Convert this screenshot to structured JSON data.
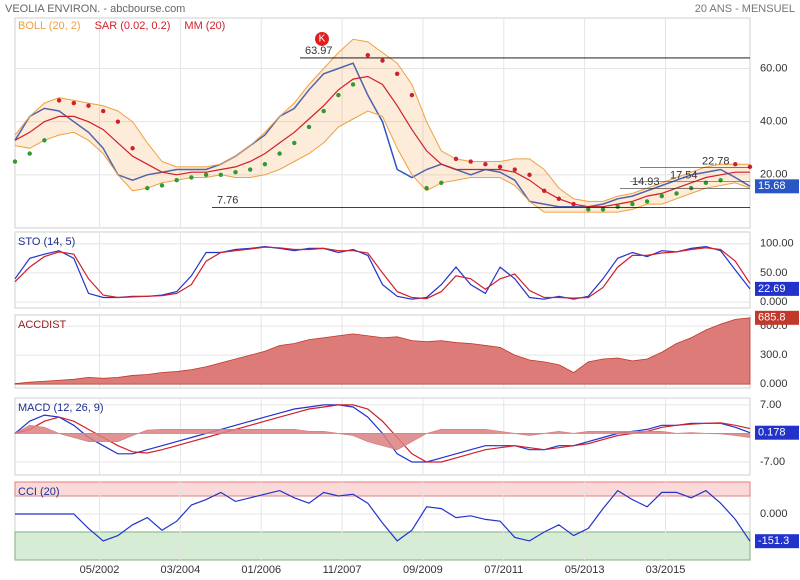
{
  "header": {
    "title": "VEOLIA ENVIRON. - abcbourse.com",
    "period": "20 ANS - MENSUEL"
  },
  "chart_data": [
    {
      "type": "line",
      "marker": "K",
      "x": [
        "06/2000",
        "10/2000",
        "02/2001",
        "06/2001",
        "10/2001",
        "02/2002",
        "06/2002",
        "10/2002",
        "02/2003",
        "06/2003",
        "10/2003",
        "02/2004",
        "06/2004",
        "10/2004",
        "02/2005",
        "06/2005",
        "10/2005",
        "02/2006",
        "06/2006",
        "10/2006",
        "02/2007",
        "06/2007",
        "10/2007",
        "02/2008",
        "06/2008",
        "10/2008",
        "02/2009",
        "06/2009",
        "10/2009",
        "02/2010",
        "06/2010",
        "10/2010",
        "02/2011",
        "06/2011",
        "10/2011",
        "02/2012",
        "06/2012",
        "10/2012",
        "02/2013",
        "06/2013",
        "10/2013",
        "02/2014",
        "06/2014",
        "10/2014",
        "02/2015",
        "06/2015",
        "10/2015",
        "02/2016",
        "06/2016",
        "10/2016",
        "02/2017"
      ],
      "xlim": [
        "06/2000",
        "02/2017"
      ],
      "ylim": [
        0,
        79
      ],
      "yticks": [
        {
          "value": 20,
          "label": "20.00"
        },
        {
          "value": 40,
          "label": "40.00"
        },
        {
          "value": 60,
          "label": "60.00"
        }
      ],
      "levels": [
        63.97,
        7.76
      ],
      "fib_levels": [
        22.78,
        17.54,
        14.93
      ],
      "series": [
        {
          "color": "#2a56c6",
          "values": [
            33,
            42,
            45,
            44,
            40,
            36,
            30,
            20,
            18,
            20,
            21,
            22,
            22,
            22,
            24,
            27,
            31,
            35,
            42,
            45,
            52,
            58,
            60,
            62,
            50,
            40,
            22,
            19,
            22,
            24,
            22,
            20,
            22,
            21,
            18,
            10,
            9,
            8,
            8,
            8,
            9,
            11,
            12,
            14,
            16,
            18,
            20,
            21,
            22,
            19,
            15.68
          ]
        },
        {
          "name": "BOLL (20, 2)",
          "type": "band",
          "color": "#f0a040",
          "upper": [
            35,
            42,
            47,
            49,
            48,
            47,
            46,
            44,
            40,
            32,
            25,
            23,
            23,
            23,
            24,
            27,
            31,
            36,
            42,
            47,
            54,
            60,
            66,
            71,
            70,
            66,
            62,
            54,
            40,
            29,
            26,
            25,
            25,
            25,
            26,
            26,
            22,
            15,
            11,
            10,
            10,
            12,
            13,
            15,
            17,
            19,
            21,
            23,
            24,
            24,
            24
          ],
          "lower": [
            31,
            30,
            33,
            35,
            36,
            33,
            28,
            20,
            14,
            15,
            17,
            18,
            19,
            19,
            20,
            19,
            19,
            20,
            22,
            25,
            28,
            32,
            38,
            41,
            44,
            42,
            30,
            20,
            14,
            17,
            18,
            19,
            19,
            19,
            16,
            10,
            6,
            6,
            6,
            6,
            6,
            6,
            7,
            9,
            9,
            11,
            13,
            15,
            16,
            17,
            15
          ]
        },
        {
          "name": "SAR (0.02, 0.2)",
          "type": "dots",
          "color": "#d0202a",
          "color_below": "#2f9a2f",
          "values": [
            25,
            28,
            33,
            48,
            47,
            46,
            44,
            40,
            30,
            15,
            16,
            18,
            19,
            20,
            20,
            21,
            22,
            24,
            28,
            32,
            38,
            44,
            50,
            54,
            65,
            63,
            58,
            50,
            15,
            17,
            26,
            25,
            24,
            23,
            22,
            20,
            14,
            11,
            9,
            7,
            7,
            8,
            9,
            10,
            12,
            13,
            15,
            17,
            18,
            24,
            23
          ]
        },
        {
          "name": "MM (20)",
          "color": "#d0202a",
          "values": [
            33,
            36,
            40,
            42,
            42,
            40,
            37,
            32,
            27,
            24,
            21,
            20,
            21,
            21,
            22,
            23,
            25,
            28,
            32,
            36,
            41,
            46,
            52,
            56,
            57,
            54,
            46,
            37,
            29,
            24,
            22,
            22,
            22,
            22,
            21,
            18,
            14,
            11,
            9,
            8,
            8,
            9,
            10,
            12,
            13,
            15,
            17,
            19,
            20,
            21,
            21
          ]
        }
      ]
    },
    {
      "type": "line",
      "title": "STO (14, 5)",
      "title_color": "#1a2f8f",
      "ylim": [
        -10,
        120
      ],
      "yticks": [
        {
          "value": 0,
          "label": "0.000"
        },
        {
          "value": 50,
          "label": "50.00"
        },
        {
          "value": 100,
          "label": "100.00"
        }
      ],
      "series": [
        {
          "color": "#2233cc",
          "values": [
            40,
            75,
            82,
            88,
            75,
            15,
            8,
            8,
            10,
            10,
            12,
            18,
            45,
            85,
            85,
            90,
            92,
            95,
            92,
            88,
            92,
            92,
            85,
            90,
            80,
            30,
            10,
            5,
            8,
            30,
            60,
            30,
            15,
            60,
            40,
            8,
            5,
            10,
            5,
            10,
            40,
            75,
            85,
            78,
            88,
            86,
            92,
            95,
            88,
            55,
            22.69
          ]
        },
        {
          "color": "#d0202a",
          "values": [
            35,
            60,
            78,
            86,
            82,
            40,
            12,
            8,
            9,
            10,
            11,
            15,
            30,
            70,
            85,
            88,
            91,
            94,
            93,
            90,
            90,
            92,
            88,
            88,
            84,
            50,
            18,
            8,
            6,
            18,
            45,
            40,
            22,
            40,
            48,
            20,
            8,
            8,
            7,
            8,
            25,
            60,
            80,
            80,
            84,
            86,
            90,
            93,
            90,
            70,
            32
          ]
        }
      ]
    },
    {
      "type": "area",
      "title": "ACCDIST",
      "title_color": "#9a1a1a",
      "ylim": [
        -40,
        715
      ],
      "yticks": [
        {
          "value": 0,
          "label": "0.000"
        },
        {
          "value": 300,
          "label": "300.0"
        },
        {
          "value": 600,
          "label": "600.0"
        }
      ],
      "series": [
        {
          "color": "#c0392b",
          "fill": "#dc7b78",
          "values": [
            5,
            20,
            30,
            40,
            50,
            70,
            60,
            70,
            90,
            100,
            120,
            130,
            150,
            180,
            220,
            260,
            300,
            340,
            400,
            420,
            460,
            480,
            500,
            520,
            500,
            480,
            490,
            450,
            440,
            450,
            430,
            420,
            400,
            380,
            300,
            250,
            230,
            200,
            120,
            230,
            260,
            270,
            240,
            260,
            330,
            420,
            480,
            560,
            620,
            670,
            685.8
          ]
        }
      ]
    },
    {
      "type": "line",
      "title": "MACD (12, 26, 9)",
      "title_color": "#1a2f8f",
      "ylim": [
        -10.2,
        8.7
      ],
      "yticks": [
        {
          "value": -7,
          "label": "-7.00"
        },
        {
          "value": 7,
          "label": "7.00"
        }
      ],
      "series": [
        {
          "color": "#2233cc",
          "values": [
            0,
            3,
            4.5,
            4,
            2,
            -1,
            -3,
            -5,
            -5,
            -4,
            -3,
            -2,
            -1,
            0,
            1,
            2,
            3,
            4,
            5,
            6,
            6.5,
            7,
            7,
            6.5,
            4,
            0,
            -5,
            -7,
            -7,
            -6,
            -5,
            -4,
            -3,
            -3,
            -3,
            -4,
            -4,
            -3,
            -3,
            -2,
            -1,
            0,
            0.5,
            1,
            2,
            2,
            2.5,
            2.5,
            2.5,
            1.5,
            0.178
          ]
        },
        {
          "color": "#d0202a",
          "values": [
            0,
            1,
            3,
            4,
            3,
            1,
            -1,
            -3,
            -4.5,
            -4.8,
            -4,
            -3,
            -2,
            -1,
            0,
            1,
            2,
            3,
            4,
            5,
            6,
            6.5,
            7,
            7,
            6,
            3,
            -1,
            -5,
            -7,
            -7,
            -6,
            -5,
            -4,
            -3.5,
            -3,
            -3.5,
            -4,
            -3.5,
            -3,
            -2.5,
            -1.5,
            -0.5,
            0,
            0.5,
            1.5,
            2,
            2.3,
            2.5,
            2.6,
            2,
            1.2
          ]
        },
        {
          "type": "hist",
          "color": "#d98080",
          "values": [
            0,
            2,
            1.5,
            0,
            -1,
            -2,
            -2,
            -2,
            -0.5,
            0.8,
            1,
            1,
            1,
            1,
            1,
            1,
            1,
            1,
            1,
            1,
            0.5,
            0.5,
            0,
            -0.5,
            -2,
            -3,
            -4,
            -2,
            0,
            1,
            1,
            1,
            1,
            0.5,
            0,
            -0.5,
            0,
            0.5,
            0,
            0.5,
            0.5,
            0.5,
            0.5,
            0.5,
            0.5,
            0,
            0.2,
            0,
            -0.1,
            -0.5,
            -1
          ]
        }
      ]
    },
    {
      "type": "line",
      "title": "CCI (20)",
      "title_color": "#1a2f8f",
      "ylim": [
        -256,
        178
      ],
      "yticks": [
        {
          "value": 0,
          "label": "0.000"
        }
      ],
      "zones": [
        -100,
        100
      ],
      "xticks": [
        "05/2002",
        "03/2004",
        "01/2006",
        "11/2007",
        "09/2009",
        "07/2011",
        "05/2013",
        "03/2015"
      ],
      "series": [
        {
          "color": "#2233cc",
          "values": [
            0,
            0,
            0,
            0,
            0,
            -80,
            -150,
            -120,
            -60,
            -20,
            -90,
            -40,
            50,
            80,
            120,
            70,
            90,
            110,
            130,
            90,
            60,
            120,
            100,
            110,
            60,
            -50,
            -150,
            -90,
            40,
            30,
            -20,
            -10,
            -30,
            -40,
            -130,
            -150,
            -100,
            -60,
            -120,
            -80,
            30,
            130,
            80,
            40,
            120,
            120,
            90,
            130,
            60,
            -30,
            -151.3
          ]
        }
      ]
    }
  ]
}
